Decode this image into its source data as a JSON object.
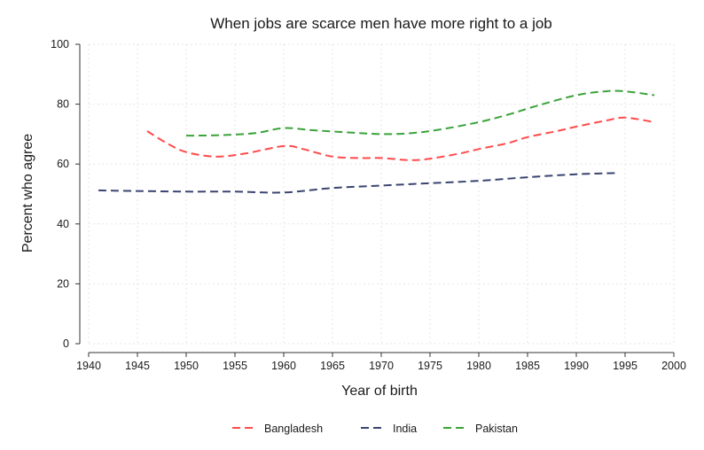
{
  "chart_data": {
    "type": "line",
    "title": "When jobs are scarce men have more right to a job",
    "xlabel": "Year of birth",
    "ylabel": "Percent who agree",
    "xlim": [
      1940,
      2000
    ],
    "ylim": [
      0,
      100
    ],
    "xticks": [
      "1940",
      "1945",
      "1950",
      "1955",
      "1960",
      "1965",
      "1970",
      "1975",
      "1980",
      "1985",
      "1990",
      "1995",
      "2000"
    ],
    "yticks": [
      "0",
      "20",
      "40",
      "60",
      "80",
      "100"
    ],
    "grid": true,
    "legend_position": "bottom",
    "series": [
      {
        "name": "Bangladesh",
        "color": "#ff4b4b",
        "x": [
          1946,
          1948,
          1950,
          1953,
          1956,
          1960,
          1962,
          1965,
          1968,
          1970,
          1973,
          1975,
          1978,
          1980,
          1983,
          1985,
          1988,
          1990,
          1993,
          1995,
          1998
        ],
        "y": [
          71,
          67,
          64,
          62.5,
          63.5,
          66,
          65,
          62.5,
          62,
          62,
          61.3,
          61.8,
          63.5,
          65,
          67,
          69,
          71,
          72.5,
          74.5,
          75.5,
          74
        ]
      },
      {
        "name": "India",
        "color": "#3a4570",
        "x": [
          1941,
          1945,
          1950,
          1955,
          1960,
          1965,
          1970,
          1975,
          1980,
          1985,
          1990,
          1994
        ],
        "y": [
          51.2,
          51,
          50.8,
          50.8,
          50.5,
          52,
          52.8,
          53.6,
          54.4,
          55.6,
          56.6,
          57
        ]
      },
      {
        "name": "Pakistan",
        "color": "#3aa33a",
        "x": [
          1950,
          1953,
          1957,
          1960,
          1963,
          1967,
          1970,
          1973,
          1976,
          1980,
          1983,
          1986,
          1990,
          1993,
          1995,
          1998
        ],
        "y": [
          69.5,
          69.6,
          70.3,
          72,
          71.3,
          70.5,
          70,
          70.3,
          71.5,
          74,
          76.5,
          79.5,
          83,
          84.3,
          84.3,
          83
        ]
      }
    ]
  }
}
